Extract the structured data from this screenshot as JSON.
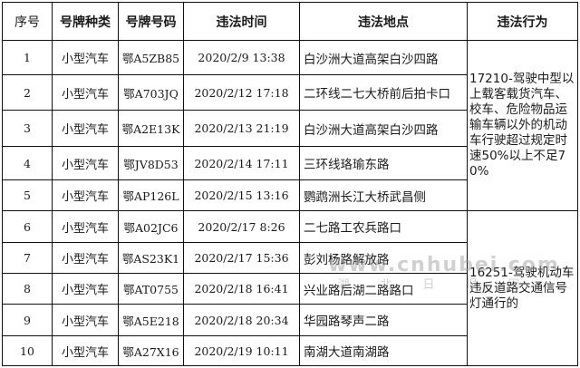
{
  "headers": [
    "序号",
    "号牌种类",
    "号牌号码",
    "违法时间",
    "违法地点",
    "违法行为"
  ],
  "rows": [
    {
      "no": "1",
      "type": "小型汽车",
      "plate": "鄂A5ZB85",
      "time": "2020/2/9 13:38",
      "location": "白沙洲大道高架白沙四路"
    },
    {
      "no": "2",
      "type": "小型汽车",
      "plate": "鄂A703JQ",
      "time": "2020/2/12 17:18",
      "location": "二环线二七大桥前后拍卡口"
    },
    {
      "no": "3",
      "type": "小型汽车",
      "plate": "鄂A2E13K",
      "time": "2020/2/13 21:19",
      "location": "白沙洲大道高架白沙四路"
    },
    {
      "no": "4",
      "type": "小型汽车",
      "plate": "鄂JV8D53",
      "time": "2020/2/14 17:11",
      "location": "三环线珞瑜东路"
    },
    {
      "no": "5",
      "type": "小型汽车",
      "plate": "鄂AP126L",
      "time": "2020/2/15 13:16",
      "location": "鹦鹉洲长江大桥武昌侧"
    },
    {
      "no": "6",
      "type": "小型汽车",
      "plate": "鄂A02JC6",
      "time": "2020/2/17 8:26",
      "location": "二七路工农兵路口"
    },
    {
      "no": "7",
      "type": "小型汽车",
      "plate": "鄂AS23K1",
      "time": "2020/2/17 15:36",
      "location": "彭刘杨路解放路"
    },
    {
      "no": "8",
      "type": "小型汽车",
      "plate": "鄂AT0755",
      "time": "2020/2/18 16:41",
      "location": "兴业路后湖二路路口"
    },
    {
      "no": "9",
      "type": "小型汽车",
      "plate": "鄂A5E218",
      "time": "2020/2/18 20:34",
      "location": "华园路琴声二路"
    },
    {
      "no": "10",
      "type": "小型汽车",
      "plate": "鄂A27X16",
      "time": "2020/2/19 10:11",
      "location": "南湖大道南湖路"
    }
  ],
  "behaviors": [
    " 17210-驾驶中型以上载客载货汽车、校车、危险物品运输车辆以外的机动车行驶超过规定时速50%以上不足70%",
    "16251-驾驶机动车违反道路交通信号灯通行的"
  ],
  "watermark": {
    "url": "www.cnhubei.com",
    "name": "湖北日报网"
  }
}
